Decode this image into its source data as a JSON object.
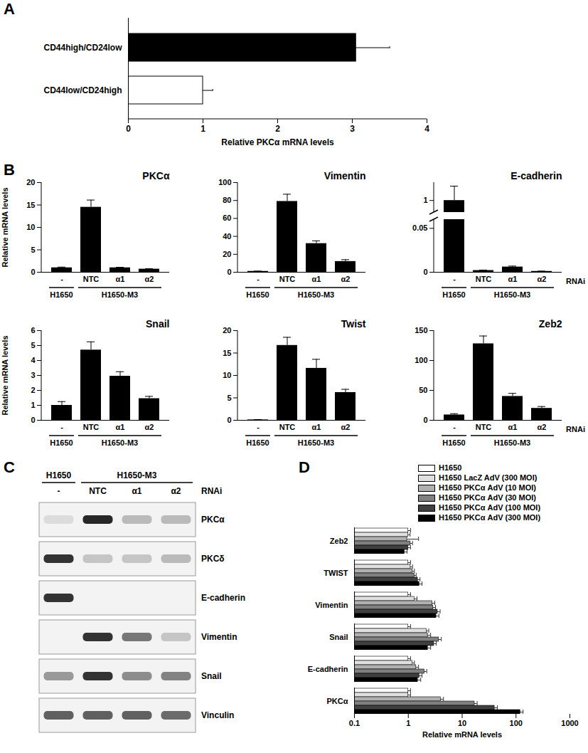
{
  "chart_data": [
    {
      "panel": "A",
      "type": "bar",
      "orientation": "horizontal",
      "categories": [
        "CD44high/CD24low",
        "CD44low/CD24high"
      ],
      "values": [
        3.05,
        1.0
      ],
      "errors": [
        0.45,
        0.13
      ],
      "colors": [
        "#000000",
        "#ffffff"
      ],
      "xlabel": "Relative PKCα mRNA levels",
      "xlim": [
        0,
        4
      ],
      "xticks": [
        0,
        1,
        2,
        3,
        4
      ]
    },
    {
      "panel": "B",
      "type": "bar",
      "title": "PKCα",
      "ylabel": "Relative mRNA levels",
      "categories": [
        "-",
        "NTC",
        "α1",
        "α2"
      ],
      "groups": [
        "H1650",
        "H1650-M3",
        "H1650-M3",
        "H1650-M3"
      ],
      "values": [
        1.0,
        14.5,
        1.0,
        0.7
      ],
      "errors": [
        0.15,
        1.6,
        0.1,
        0.1
      ],
      "color": "#000000",
      "ylim": [
        0,
        20
      ],
      "yticks": [
        0,
        5,
        10,
        15,
        20
      ]
    },
    {
      "type": "bar",
      "title": "Vimentin",
      "categories": [
        "-",
        "NTC",
        "α1",
        "α2"
      ],
      "groups": [
        "H1650",
        "H1650-M3",
        "H1650-M3",
        "H1650-M3"
      ],
      "values": [
        1,
        79,
        32,
        12
      ],
      "errors": [
        0.3,
        8,
        3,
        2
      ],
      "color": "#000000",
      "ylim": [
        0,
        100
      ],
      "yticks": [
        0,
        20,
        40,
        60,
        80,
        100
      ]
    },
    {
      "type": "bar",
      "title": "E-cadherin",
      "annotation": "RNAi",
      "categories": [
        "-",
        "NTC",
        "α1",
        "α2"
      ],
      "groups": [
        "H1650",
        "H1650-M3",
        "H1650-M3",
        "H1650-M3"
      ],
      "values": [
        1.0,
        0.002,
        0.006,
        0.001
      ],
      "errors": [
        0.12,
        0.0005,
        0.001,
        0.0003
      ],
      "color": "#000000",
      "ylim": [
        0,
        1.15
      ],
      "ybreak": [
        0.06,
        0.9
      ],
      "yticks": [
        0,
        0.05,
        1
      ]
    },
    {
      "type": "bar",
      "title": "Snail",
      "ylabel": "Relative mRNA levels",
      "categories": [
        "-",
        "NTC",
        "α1",
        "α2"
      ],
      "groups": [
        "H1650",
        "H1650-M3",
        "H1650-M3",
        "H1650-M3"
      ],
      "values": [
        1.0,
        4.7,
        2.95,
        1.45
      ],
      "errors": [
        0.25,
        0.55,
        0.3,
        0.15
      ],
      "color": "#000000",
      "ylim": [
        0,
        6
      ],
      "yticks": [
        0,
        1,
        2,
        3,
        4,
        5,
        6
      ]
    },
    {
      "type": "bar",
      "title": "Twist",
      "categories": [
        "-",
        "NTC",
        "α1",
        "α2"
      ],
      "groups": [
        "H1650",
        "H1650-M3",
        "H1650-M3",
        "H1650-M3"
      ],
      "values": [
        0.1,
        16.7,
        11.6,
        6.2
      ],
      "errors": [
        0.05,
        1.8,
        2.0,
        0.7
      ],
      "color": "#000000",
      "ylim": [
        0,
        20
      ],
      "yticks": [
        0,
        5,
        10,
        15,
        20
      ]
    },
    {
      "type": "bar",
      "title": "Zeb2",
      "annotation": "RNAi",
      "categories": [
        "-",
        "NTC",
        "α1",
        "α2"
      ],
      "groups": [
        "H1650",
        "H1650-M3",
        "H1650-M3",
        "H1650-M3"
      ],
      "values": [
        9,
        128,
        40,
        20
      ],
      "errors": [
        2,
        13,
        5,
        3
      ],
      "color": "#000000",
      "ylim": [
        0,
        150
      ],
      "yticks": [
        0,
        50,
        100,
        150
      ]
    },
    {
      "panel": "D",
      "type": "bar",
      "orientation": "horizontal",
      "log": "x",
      "categories": [
        "Zeb2",
        "TWIST",
        "Vimentin",
        "Snail",
        "E-cadherin",
        "PKCα"
      ],
      "xlabel": "Relative mRNA levels",
      "xlim": [
        0.1,
        1000
      ],
      "xticks": [
        0.1,
        1,
        10,
        100,
        1000
      ],
      "legend": "top-right",
      "series": [
        {
          "name": "H1650",
          "color": "#ffffff",
          "values": [
            1,
            1,
            1,
            1,
            1,
            1
          ],
          "errors": [
            0.1,
            0.1,
            0.1,
            0.1,
            0.1,
            0.1
          ]
        },
        {
          "name": "H1650 LacZ AdV (300 MOI)",
          "color": "#e0e0e0",
          "values": [
            1.0,
            1.1,
            1.3,
            2.2,
            1.2,
            1.0
          ],
          "errors": [
            0.08,
            0.1,
            0.15,
            0.2,
            0.1,
            0.1
          ]
        },
        {
          "name": "H1650 PKCα AdV (10 MOI)",
          "color": "#b0b0b0",
          "values": [
            0.95,
            1.2,
            2.8,
            2.3,
            1.4,
            4
          ],
          "errors": [
            0.6,
            0.1,
            0.3,
            0.3,
            0.15,
            0.5
          ]
        },
        {
          "name": "H1650 PKCα AdV (30 MOI)",
          "color": "#808080",
          "values": [
            1.1,
            1.3,
            2.9,
            3.7,
            2.0,
            17
          ],
          "errors": [
            0.1,
            0.1,
            0.3,
            0.4,
            0.2,
            2
          ]
        },
        {
          "name": "H1650 PKCα AdV (100 MOI)",
          "color": "#404040",
          "values": [
            1.0,
            1.5,
            3.5,
            3.0,
            1.6,
            40
          ],
          "errors": [
            0.1,
            0.15,
            0.4,
            0.3,
            0.2,
            5
          ]
        },
        {
          "name": "H1650 PKCα AdV (300 MOI)",
          "color": "#000000",
          "values": [
            0.85,
            1.6,
            3.3,
            2.3,
            1.5,
            120
          ],
          "errors": [
            0.1,
            0.2,
            0.4,
            0.3,
            0.2,
            15
          ]
        }
      ]
    }
  ],
  "blot": {
    "panel": "C",
    "lanes": [
      "-",
      "NTC",
      "α1",
      "α2"
    ],
    "groups": [
      "H1650",
      "H1650-M3",
      "H1650-M3",
      "H1650-M3"
    ],
    "annotation": "RNAi",
    "rows": [
      {
        "name": "PKCα",
        "bands": [
          0.1,
          0.9,
          0.25,
          0.25
        ]
      },
      {
        "name": "PKCδ",
        "bands": [
          0.85,
          0.2,
          0.2,
          0.25
        ]
      },
      {
        "name": "E-cadherin",
        "bands": [
          0.85,
          0,
          0,
          0
        ]
      },
      {
        "name": "Vimentin",
        "bands": [
          0,
          0.85,
          0.55,
          0.2
        ]
      },
      {
        "name": "Snail",
        "bands": [
          0.4,
          0.85,
          0.45,
          0.5
        ]
      },
      {
        "name": "Vinculin",
        "bands": [
          0.65,
          0.65,
          0.65,
          0.6
        ]
      }
    ]
  }
}
